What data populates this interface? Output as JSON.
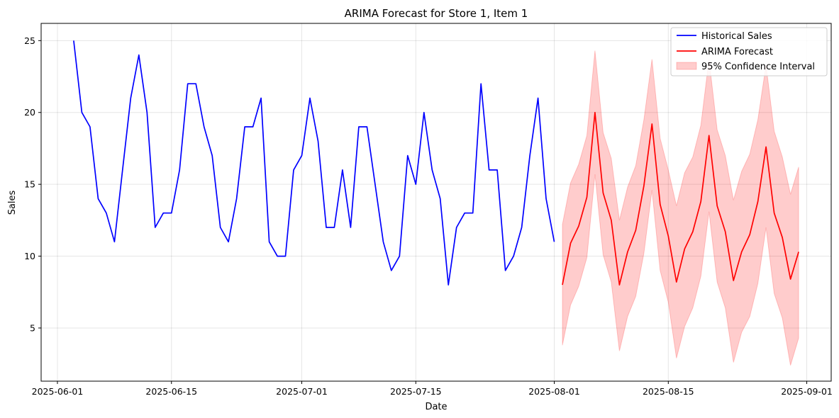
{
  "chart_data": {
    "type": "line",
    "title": "ARIMA Forecast for Store 1, Item 1",
    "xlabel": "Date",
    "ylabel": "Sales",
    "xlim": [
      "2025-05-30",
      "2025-09-04"
    ],
    "ylim": [
      1.3,
      26.2
    ],
    "x_ticks": [
      "2025-06-01",
      "2025-06-15",
      "2025-07-01",
      "2025-07-15",
      "2025-08-01",
      "2025-08-15",
      "2025-09-01"
    ],
    "y_ticks": [
      5,
      10,
      15,
      20,
      25
    ],
    "grid": true,
    "legend_position": "top-right",
    "series": [
      {
        "name": "Historical Sales",
        "color": "#0000ff",
        "start_date": "2025-06-03",
        "values": [
          25,
          20,
          19,
          14,
          13,
          11,
          16,
          21,
          24,
          20,
          12,
          13,
          13,
          16,
          22,
          22,
          19,
          17,
          12,
          11,
          14,
          19,
          19,
          21,
          11,
          10,
          10,
          16,
          17,
          21,
          18,
          12,
          12,
          16,
          12,
          19,
          19,
          15,
          11,
          9,
          10,
          17,
          15,
          20,
          16,
          14,
          8,
          12,
          13,
          13,
          22,
          16,
          16,
          9,
          10,
          12,
          17,
          21,
          14,
          11
        ]
      },
      {
        "name": "ARIMA Forecast",
        "color": "#ff0000",
        "start_date": "2025-08-02",
        "values": [
          8.0,
          10.9,
          12.1,
          14.1,
          20.0,
          14.4,
          12.5,
          8.0,
          10.3,
          11.8,
          14.9,
          19.2,
          13.6,
          11.4,
          8.2,
          10.5,
          11.7,
          13.8,
          18.4,
          13.5,
          11.7,
          8.3,
          10.3,
          11.5,
          13.8,
          17.6,
          13.0,
          11.3,
          8.4,
          10.3
        ]
      }
    ],
    "confidence_interval": {
      "name": "95% Confidence Interval",
      "color": "#ff0000",
      "start_date": "2025-08-02",
      "lower": [
        3.8,
        6.6,
        7.9,
        9.9,
        15.7,
        10.1,
        8.2,
        3.4,
        5.8,
        7.2,
        10.2,
        14.6,
        9.0,
        6.8,
        2.9,
        5.1,
        6.4,
        8.6,
        13.1,
        8.2,
        6.4,
        2.6,
        4.7,
        5.8,
        8.1,
        12.0,
        7.4,
        5.7,
        2.4,
        4.3
      ],
      "upper": [
        12.2,
        15.1,
        16.4,
        18.4,
        24.3,
        18.6,
        16.8,
        12.5,
        14.8,
        16.3,
        19.5,
        23.7,
        18.2,
        16.0,
        13.5,
        15.8,
        16.9,
        19.1,
        23.7,
        18.8,
        17.0,
        13.9,
        15.9,
        17.1,
        19.5,
        23.3,
        18.7,
        16.9,
        14.3,
        16.2
      ]
    }
  }
}
